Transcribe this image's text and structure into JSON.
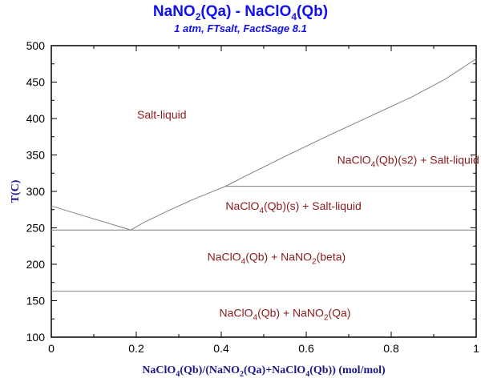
{
  "chart_data": {
    "type": "line",
    "title": "NaNO2(Qa) - NaClO4(Qb)",
    "title_parts": {
      "a": "NaNO",
      "a_sub": "2",
      "b": "(Qa) - NaClO",
      "b_sub": "4",
      "c": "(Qb)"
    },
    "subtitle": "1 atm, FTsalt, FactSage 8.1",
    "xlabel": "NaClO4(Qb)/(NaNO2(Qa)+NaClO4(Qb)) (mol/mol)",
    "xlabel_parts": [
      "NaClO",
      "4",
      "(Qb)/(NaNO",
      "2",
      "(Qa)+NaClO",
      "4",
      "(Qb)) (mol/mol)"
    ],
    "ylabel": "T(C)",
    "xlim": [
      0,
      1
    ],
    "ylim": [
      100,
      500
    ],
    "x_ticks": [
      "0",
      "0.2",
      "0.4",
      "0.6",
      "0.8",
      "1"
    ],
    "y_ticks": [
      "100",
      "150",
      "200",
      "250",
      "300",
      "350",
      "400",
      "450",
      "500"
    ],
    "grid": false,
    "line_color": "#808080",
    "series": [
      {
        "x": [
          0,
          0.187
        ],
        "y": [
          280,
          247
        ]
      },
      {
        "x": [
          0.187,
          0.22,
          0.27,
          0.33,
          0.41,
          0.45,
          0.55,
          0.65,
          0.75,
          0.85,
          0.93,
          1
        ],
        "y": [
          247,
          258,
          272,
          288,
          307,
          319,
          348,
          376,
          403,
          430,
          455,
          482
        ]
      },
      {
        "x": [
          0,
          1
        ],
        "y": [
          247,
          247
        ]
      },
      {
        "x": [
          0.41,
          1
        ],
        "y": [
          307,
          307
        ]
      },
      {
        "x": [
          0,
          1
        ],
        "y": [
          163,
          163
        ]
      }
    ],
    "annotations": [
      {
        "text": "Salt-liquid",
        "parts": [
          "Salt-liquid"
        ],
        "x": 0.26,
        "y": 400
      },
      {
        "text": "NaClO4(Qb)(s2) + Salt-liquid",
        "parts": [
          "NaClO",
          "4",
          "(Qb)(s2) + Salt-liquid"
        ],
        "x": 0.84,
        "y": 338
      },
      {
        "text": "NaClO4(Qb)(s) + Salt-liquid",
        "parts": [
          "NaClO",
          "4",
          "(Qb)(s) + Salt-liquid"
        ],
        "x": 0.57,
        "y": 275
      },
      {
        "text": "NaClO4(Qb) + NaNO2(beta)",
        "parts": [
          "NaClO",
          "4",
          "(Qb) + NaNO",
          "2",
          "(beta)"
        ],
        "x": 0.53,
        "y": 205
      },
      {
        "text": "NaClO4(Qb) + NaNO2(Qa)",
        "parts": [
          "NaClO",
          "4",
          "(Qb) + NaNO",
          "2",
          "(Qa)"
        ],
        "x": 0.55,
        "y": 128
      }
    ]
  }
}
